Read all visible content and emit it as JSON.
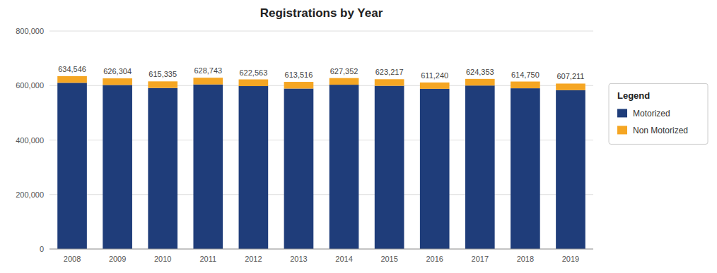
{
  "chart_data": {
    "type": "bar",
    "title": "Registrations by Year",
    "categories": [
      "2008",
      "2009",
      "2010",
      "2011",
      "2012",
      "2013",
      "2014",
      "2015",
      "2016",
      "2017",
      "2018",
      "2019"
    ],
    "series": [
      {
        "name": "Motorized",
        "color": "#1f3d7a",
        "values": [
          610000,
          602000,
          591000,
          604000,
          598000,
          589000,
          603000,
          599000,
          588000,
          600000,
          590000,
          583000
        ]
      },
      {
        "name": "Non Motorized",
        "color": "#f5a623",
        "values": [
          24546,
          24304,
          24335,
          24743,
          24563,
          24516,
          24352,
          24217,
          23240,
          24353,
          24750,
          24211
        ]
      }
    ],
    "totals": [
      634546,
      626304,
      615335,
      628743,
      622563,
      613516,
      627352,
      623217,
      611240,
      624353,
      614750,
      607211
    ],
    "total_labels": [
      "634,546",
      "626,304",
      "615,335",
      "628,743",
      "622,563",
      "613,516",
      "627,352",
      "623,217",
      "611,240",
      "624,353",
      "614,750",
      "607,211"
    ],
    "stacked": true,
    "ylim": [
      0,
      800000
    ],
    "yticks": [
      0,
      {
        "value": 200000,
        "label": "200,000"
      },
      {
        "value": 400000,
        "label": "400,000"
      },
      {
        "value": 600000,
        "label": "600,000"
      },
      {
        "value": 800000,
        "label": "800,000"
      }
    ],
    "grid": true,
    "legend": "right",
    "legend_title": "Legend"
  }
}
